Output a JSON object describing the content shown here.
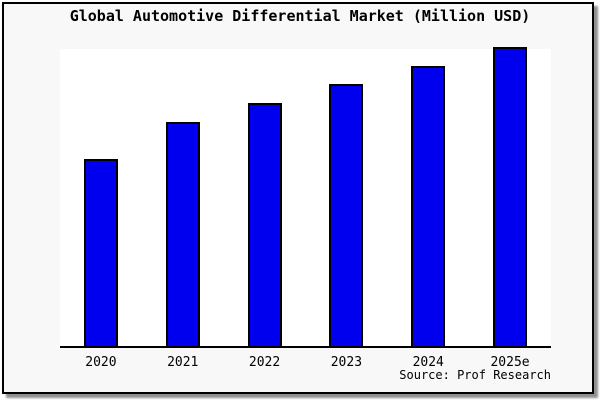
{
  "window": {
    "background_color": "#f8f8f8",
    "frame_border_color": "#000000",
    "shadow_color": "#909090",
    "plot_background_color": "#ffffff"
  },
  "title": "Global Automotive Differential Market (Million USD)",
  "source": "Source: Prof Research",
  "chart_data": {
    "type": "bar",
    "title": "Global Automotive Differential Market (Million USD)",
    "categories": [
      "2020",
      "2021",
      "2022",
      "2023",
      "2024",
      "2025e"
    ],
    "values": [
      62.7,
      75.0,
      81.3,
      87.7,
      93.7,
      100.0
    ],
    "xlabel": "",
    "ylabel": "",
    "ylim": [
      0,
      100
    ],
    "y_axis_visible": false,
    "value_labels_visible": false,
    "gridlines": false,
    "legend": "none",
    "bar_color": "#0000ee",
    "bar_border_color": "#000000",
    "axis_line_color": "#000000",
    "note": "No y-axis, ticks or value labels are shown in the image; values are estimated relative bar heights as a percentage of the tallest bar (2025e)."
  }
}
